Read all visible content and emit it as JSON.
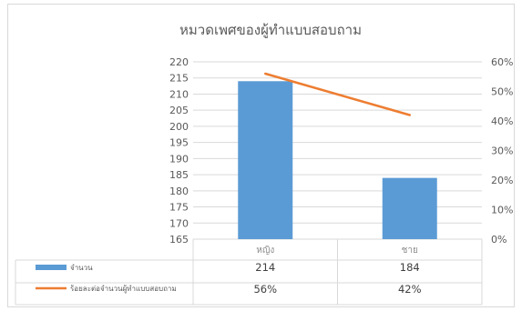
{
  "chart_data": {
    "type": "bar",
    "title": "หมวดเพศของผู้ทำแบบสอบถาม",
    "categories": [
      "หญิง",
      "ชาย"
    ],
    "series": [
      {
        "name": "จำนวน",
        "type": "bar",
        "axis": "left",
        "values": [
          214,
          184
        ],
        "labels": [
          "214",
          "184"
        ],
        "color": "#5b9bd5"
      },
      {
        "name": "ร้อยละต่อจำนวนผู้ทำแบบสอบถาม",
        "type": "line",
        "axis": "right",
        "values": [
          0.56,
          0.42
        ],
        "labels": [
          "56%",
          "42%"
        ],
        "color": "#ed7d31"
      }
    ],
    "left_axis": {
      "ylim": [
        165,
        220
      ],
      "step": 5
    },
    "right_axis": {
      "ylim": [
        0,
        0.6
      ],
      "step": 0.1,
      "format": "percent"
    },
    "grid": true,
    "legend": "data-table"
  }
}
